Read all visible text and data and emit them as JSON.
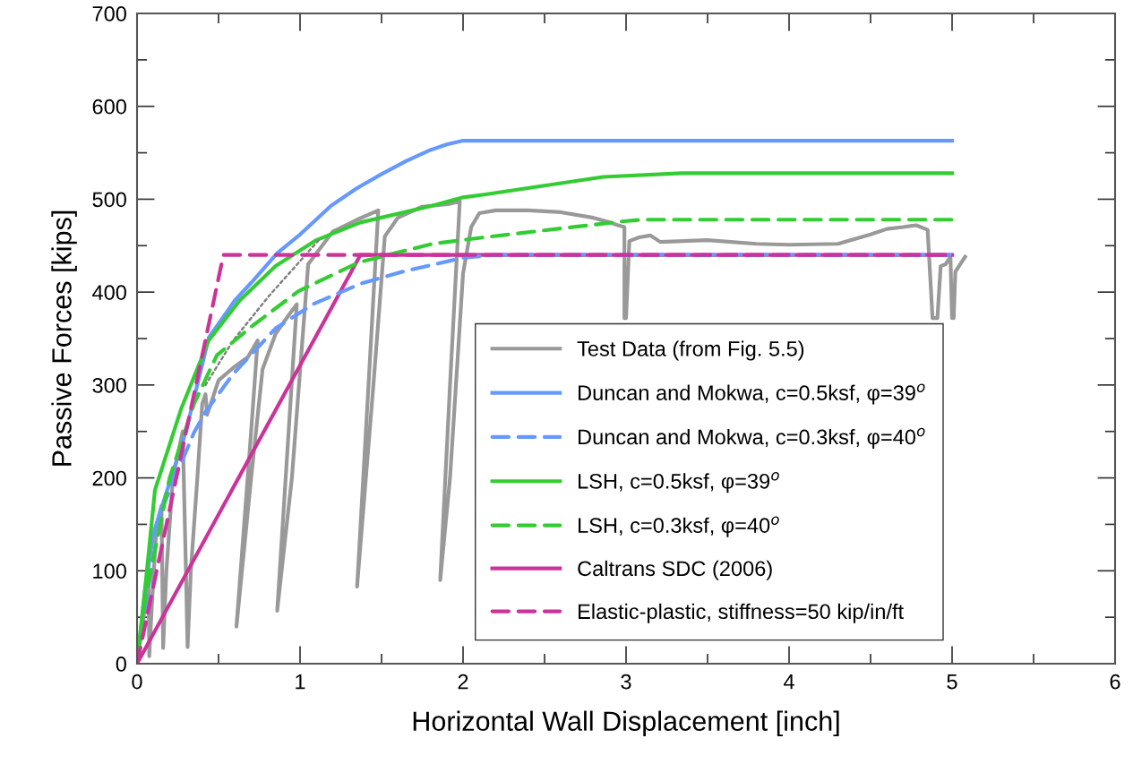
{
  "chart_data": {
    "type": "line",
    "xlabel": "Horizontal Wall Displacement [inch]",
    "ylabel": "Passive Forces [kips]",
    "xlim": [
      0,
      6
    ],
    "ylim": [
      0,
      700
    ],
    "xticks": [
      0,
      1,
      2,
      3,
      4,
      5,
      6
    ],
    "yticks": [
      0,
      100,
      200,
      300,
      400,
      500,
      600,
      700
    ],
    "grid": false,
    "legend": "bottom right",
    "marker": "none",
    "series": [
      {
        "name": "Test Data (from Fig. 5.5)",
        "color": "#999999",
        "line_style": "solid",
        "x": [
          0,
          0.04,
          0.07,
          0.075,
          0.09,
          0.12,
          0.15,
          0.16,
          0.18,
          0.22,
          0.28,
          0.3,
          0.31,
          0.33,
          0.37,
          0.4,
          0.42,
          0.43,
          0.5,
          0.6,
          0.68,
          0.74,
          0.7,
          0.61,
          0.7,
          0.77,
          0.85,
          0.93,
          0.98,
          0.93,
          0.86,
          0.95,
          1.05,
          1.2,
          1.35,
          1.48,
          1.42,
          1.35,
          1.45,
          1.52,
          1.6,
          1.75,
          1.92,
          1.98,
          1.92,
          1.86,
          1.92,
          2.0,
          2.05,
          2.1,
          2.2,
          2.4,
          2.6,
          2.8,
          2.9,
          2.95,
          2.99,
          2.99,
          3.0,
          3.02,
          3.08,
          3.15,
          3.21,
          3.5,
          3.8,
          4.0,
          4.3,
          4.5,
          4.6,
          4.7,
          4.78,
          4.85,
          4.88,
          4.91,
          4.93,
          4.96,
          4.99,
          5.0,
          5.01,
          5.02,
          5.08
        ],
        "values": [
          0,
          50,
          90,
          8,
          60,
          150,
          170,
          17,
          100,
          200,
          250,
          100,
          18,
          100,
          200,
          280,
          290,
          268,
          305,
          320,
          330,
          348,
          250,
          40,
          200,
          317,
          355,
          375,
          387,
          250,
          57,
          200,
          430,
          465,
          478,
          488,
          300,
          83,
          300,
          460,
          480,
          492,
          495,
          498,
          300,
          90,
          200,
          420,
          470,
          485,
          488,
          488,
          486,
          480,
          475,
          472,
          470,
          372,
          372,
          455,
          459,
          461,
          454,
          456,
          452,
          451,
          452,
          462,
          468,
          470,
          472,
          467,
          372,
          372,
          428,
          430,
          438,
          372,
          372,
          422,
          438
        ]
      },
      {
        "name": "Duncan and Mokwa, c=0.5ksf, φ=39$^{o}$",
        "color": "#6699ff",
        "line_style": "solid",
        "x": [
          0,
          0.05,
          0.1,
          0.2,
          0.3,
          0.44,
          0.6,
          0.7,
          0.86,
          1.0,
          1.19,
          1.35,
          1.5,
          1.65,
          1.8,
          1.9,
          2.0,
          5.0
        ],
        "values": [
          0,
          80,
          140,
          195,
          250,
          351,
          391,
          410,
          442,
          462,
          493,
          512,
          527,
          541,
          553,
          559,
          563,
          563
        ]
      },
      {
        "name": "Duncan and Mokwa, c=0.3ksf, φ=40$^{o}$",
        "color": "#6699ff",
        "line_style": "dashed",
        "x": [
          0,
          0.05,
          0.1,
          0.165,
          0.35,
          0.42,
          0.59,
          0.85,
          1.08,
          1.37,
          1.63,
          2.0,
          2.2,
          5.0
        ],
        "values": [
          0,
          60,
          115,
          172,
          249,
          271,
          312,
          361,
          387,
          409,
          422,
          437,
          440,
          440
        ]
      },
      {
        "name": "LSH, c=0.5ksf, φ=39$^{o}$",
        "color": "#33cc33",
        "line_style": "solid",
        "x": [
          0,
          0.055,
          0.11,
          0.27,
          0.44,
          0.63,
          0.85,
          1.1,
          1.37,
          1.81,
          2.0,
          2.13,
          2.86,
          3.34,
          5.0
        ],
        "values": [
          0,
          91,
          187,
          274,
          348,
          391,
          428,
          456,
          475,
          493,
          502,
          505,
          524,
          528,
          528
        ]
      },
      {
        "name": "LSH, c=0.3ksf, φ=40$^{o}$",
        "color": "#33cc33",
        "line_style": "dashed",
        "x": [
          0,
          0.05,
          0.2,
          0.35,
          0.49,
          0.71,
          0.99,
          1.36,
          1.81,
          2.13,
          2.97,
          3.1,
          5.0
        ],
        "values": [
          0,
          70,
          200,
          280,
          332,
          364,
          401,
          432,
          452,
          459,
          476,
          478,
          478
        ]
      },
      {
        "name": "Caltrans SDC (2006)",
        "color": "#cc3399",
        "line_style": "solid",
        "x": [
          0,
          1.37,
          5.0
        ],
        "values": [
          0,
          440,
          440
        ]
      },
      {
        "name": "Elastic-plastic, stiffness=50 kip/in/ft",
        "color": "#cc3399",
        "line_style": "dashed",
        "x": [
          0,
          0.53,
          5.0
        ],
        "values": [
          0,
          440,
          440
        ]
      },
      {
        "color": "#808080",
        "line_style": "dotted",
        "x": [
          0.42,
          0.59,
          0.81,
          1.12
        ],
        "values": [
          300,
          348,
          396,
          457
        ]
      }
    ]
  }
}
